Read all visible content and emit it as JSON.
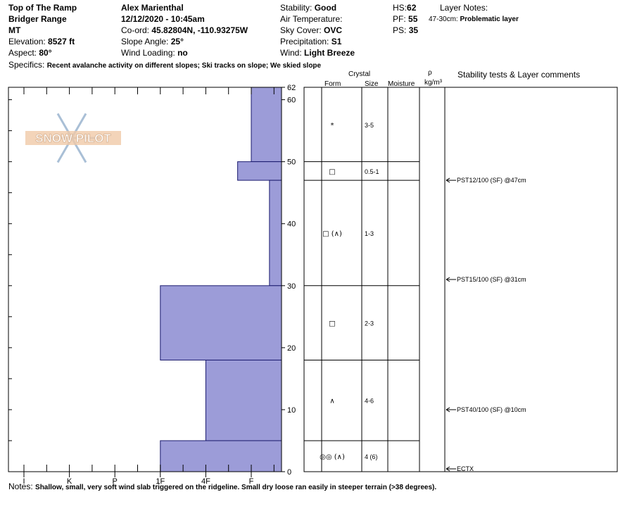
{
  "header": {
    "location": "Top of The Ramp",
    "range": "Bridger Range",
    "state": "MT",
    "elevation_label": "Elevation:",
    "elevation_value": "8527 ft",
    "aspect_label": "Aspect:",
    "aspect_value": "80°",
    "observer": "Alex Marienthal",
    "datetime": "12/12/2020 - 10:45am",
    "coord_label": "Co-ord:",
    "coord_value": "45.82804N, -110.93275W",
    "slope_label": "Slope Angle:",
    "slope_value": "25°",
    "wind_loading_label": "Wind Loading:",
    "wind_loading_value": "no",
    "stability_label": "Stability:",
    "stability_value": "Good",
    "air_temp_label": "Air Temperature:",
    "sky_label": "Sky Cover:",
    "sky_value": "OVC",
    "precip_label": "Precipitation:",
    "precip_value": "S1",
    "wind_label": "Wind:",
    "wind_value": "Light Breeze",
    "hs_label": "HS:",
    "hs_value": "62",
    "pf_label": "PF:",
    "pf_value": "55",
    "ps_label": "PS:",
    "ps_value": "35",
    "layer_notes_label": "Layer Notes:",
    "layer_note_range": "47-30cm:",
    "layer_note_text": "Problematic layer",
    "specifics_label": "Specifics:",
    "specifics_value": "Recent avalanche activity on different slopes; Ski tracks on slope; We skied slope"
  },
  "columns": {
    "crystal": "Crystal",
    "form": "Form",
    "size": "Size",
    "moisture": "Moisture",
    "rho": "ρ",
    "density_unit": "kg/m³",
    "stability": "Stability tests & Layer comments"
  },
  "notes": {
    "label": "Notes:",
    "text": "Shallow, small, very soft wind slab triggered on the ridgeline. Small dry loose ran easily in steeper terrain (>38 degrees)."
  },
  "watermark": "SNOW PILOT",
  "colors": {
    "bar_fill": "#9c9cd8",
    "bar_stroke": "#1a1a6e"
  },
  "chart_data": {
    "type": "bar",
    "orientation": "horizontal",
    "xlabel": "",
    "ylabel": "",
    "hardness_ticks": [
      "I",
      "K",
      "P",
      "1F",
      "4F",
      "F"
    ],
    "height_ticks": [
      "0",
      "10",
      "20",
      "30",
      "40",
      "50",
      "60",
      "62"
    ],
    "ylim": [
      0,
      62
    ],
    "hardness_layers": [
      {
        "top": 62,
        "bottom": 50,
        "hardness": "F",
        "rank": 5.3
      },
      {
        "top": 50,
        "bottom": 47,
        "hardness": "F+",
        "rank": 5.0
      },
      {
        "top": 47,
        "bottom": 30,
        "hardness": "F",
        "rank": 5.7
      },
      {
        "top": 30,
        "bottom": 18,
        "hardness": "1F",
        "rank": 3.3
      },
      {
        "top": 18,
        "bottom": 5,
        "hardness": "4F",
        "rank": 4.3
      },
      {
        "top": 5,
        "bottom": 0,
        "hardness": "1F",
        "rank": 3.3
      }
    ],
    "layer_boundaries": [
      62,
      50,
      47,
      30,
      18,
      5,
      0
    ],
    "crystal_layers": [
      {
        "top": 62,
        "bottom": 50,
        "form": "*",
        "size": "3-5"
      },
      {
        "top": 50,
        "bottom": 47,
        "form": "□",
        "size": "0.5-1"
      },
      {
        "top": 47,
        "bottom": 30,
        "form": "□ (∧)",
        "size": "1-3"
      },
      {
        "top": 30,
        "bottom": 18,
        "form": "□",
        "size": "2-3"
      },
      {
        "top": 18,
        "bottom": 5,
        "form": "∧",
        "size": "4-6"
      },
      {
        "top": 5,
        "bottom": 0,
        "form": "◎◎ (∧)",
        "size": "4 (6)"
      }
    ],
    "stability_tests": [
      {
        "height": 47,
        "text": "PST12/100 (SF) @47cm"
      },
      {
        "height": 31,
        "text": "PST15/100 (SF) @31cm"
      },
      {
        "height": 10,
        "text": "PST40/100 (SF) @10cm"
      },
      {
        "height": 0,
        "text": "ECTX"
      }
    ]
  }
}
